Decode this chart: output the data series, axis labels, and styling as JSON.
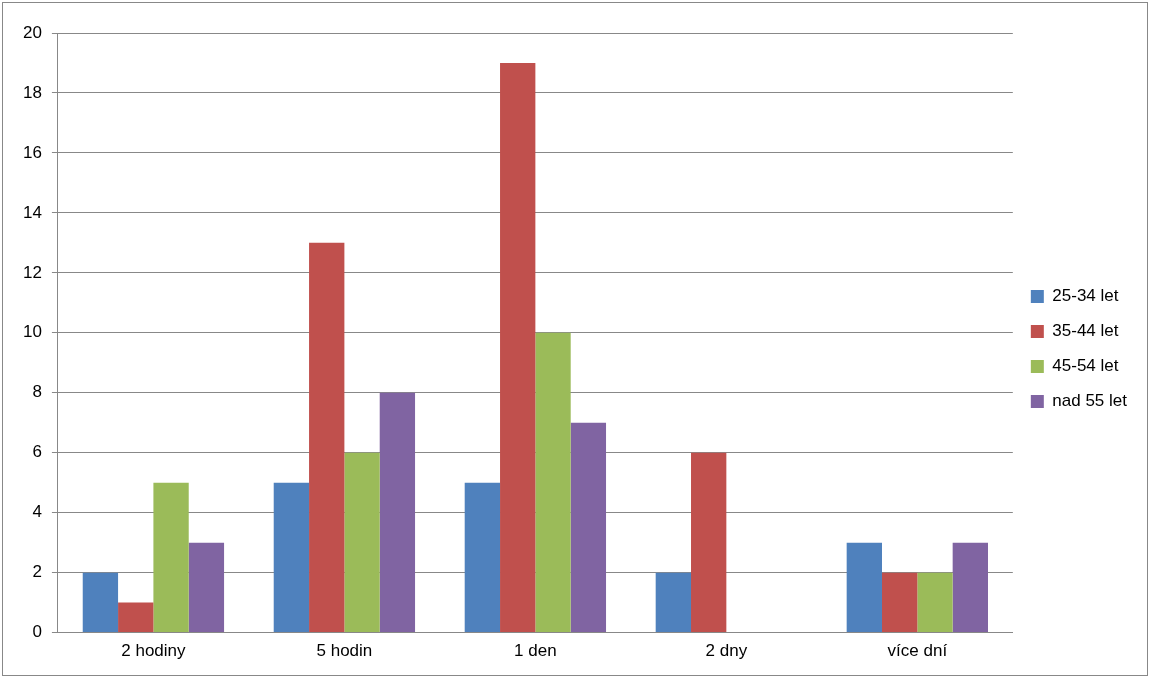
{
  "chart_data": {
    "type": "bar",
    "categories": [
      "2 hodiny",
      "5 hodin",
      "1 den",
      "2 dny",
      "více dní"
    ],
    "series": [
      {
        "name": "25-34 let",
        "color": "#4f81bd",
        "values": [
          2,
          5,
          5,
          2,
          3
        ]
      },
      {
        "name": "35-44 let",
        "color": "#c0504d",
        "values": [
          1,
          13,
          19,
          6,
          2
        ]
      },
      {
        "name": "45-54 let",
        "color": "#9bbb59",
        "values": [
          5,
          6,
          10,
          0,
          2
        ]
      },
      {
        "name": "nad 55 let",
        "color": "#8064a2",
        "values": [
          3,
          8,
          7,
          0,
          3
        ]
      }
    ],
    "ylim": [
      0,
      20
    ],
    "yticks": [
      0,
      2,
      4,
      6,
      8,
      10,
      12,
      14,
      16,
      18,
      20
    ],
    "grid": "y",
    "legend": "right"
  }
}
